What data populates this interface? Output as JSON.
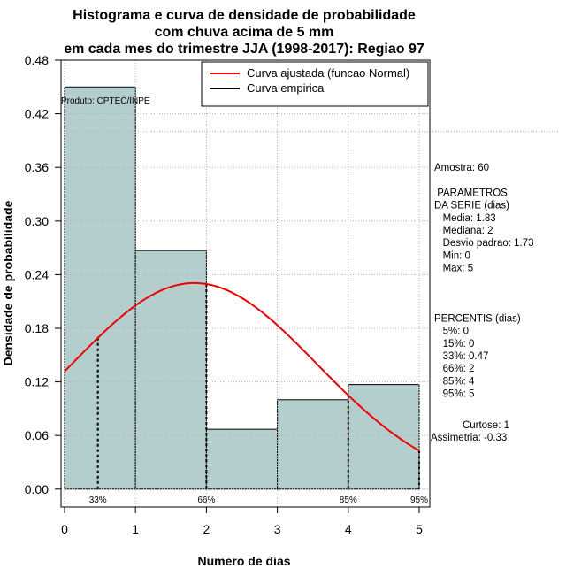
{
  "chart_data": {
    "type": "histogram",
    "title_lines": [
      "Histograma e curva de densidade de probabilidade",
      "com chuva acima de 5 mm",
      "em cada mes do trimestre JJA (1998-2017): Regiao 97"
    ],
    "xlabel": "Numero de dias",
    "ylabel": "Densidade de probabilidade",
    "xlim": [
      -0.05,
      5.15
    ],
    "ylim": [
      -0.02,
      0.48
    ],
    "x_ticks": [
      0,
      1,
      2,
      3,
      4,
      5
    ],
    "y_ticks": [
      0.0,
      0.06,
      0.12,
      0.18,
      0.24,
      0.3,
      0.36,
      0.42,
      0.48
    ],
    "y_tick_labels": [
      "0.00",
      "0.06",
      "0.12",
      "0.18",
      "0.24",
      "0.30",
      "0.36",
      "0.42",
      "0.48"
    ],
    "reference_line_y": 0.4,
    "bars": [
      {
        "x0": 0,
        "x1": 1,
        "density": 0.45
      },
      {
        "x0": 1,
        "x1": 2,
        "density": 0.267
      },
      {
        "x0": 2,
        "x1": 3,
        "density": 0.067
      },
      {
        "x0": 3,
        "x1": 4,
        "density": 0.1
      },
      {
        "x0": 4,
        "x1": 5,
        "density": 0.117
      }
    ],
    "bar_color": "#b4cdcd",
    "normal_fit": {
      "mean": 1.83,
      "sd": 1.73,
      "x_range": [
        0,
        5
      ],
      "color": "#ee0000"
    },
    "percentile_markers": [
      {
        "label": "33%",
        "x": 0.47
      },
      {
        "label": "66%",
        "x": 2
      },
      {
        "label": "85%",
        "x": 4
      },
      {
        "label": "95%",
        "x": 5
      }
    ],
    "legend": [
      {
        "label": "Curva ajustada (funcao Normal)",
        "color": "#ee0000"
      },
      {
        "label": "Curva empirica",
        "color": "#000000"
      }
    ],
    "product_label": "Produto: CPTEC/INPE",
    "stats_block": [
      "Amostra: 60",
      "",
      " PARAMETROS",
      "DA SERIE (dias)",
      "   Media: 1.83",
      "   Mediana: 2",
      "   Desvio padrao: 1.73",
      "   Min: 0",
      "   Max: 5",
      "",
      "",
      "",
      "PERCENTIS (dias)",
      "   5%: 0",
      "   15%: 0",
      "   33%: 0.47",
      "   66%: 2",
      "   85%: 4",
      "   95%: 5"
    ],
    "shape_stats": [
      "Curtose: 1",
      "Assimetria: -0.33"
    ]
  }
}
